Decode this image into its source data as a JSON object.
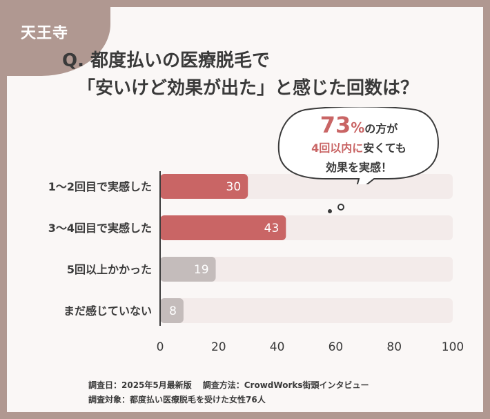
{
  "corner_label": "天王寺",
  "title": {
    "line1": "Q. 都度払いの医療脱毛で",
    "line2": "「安いけど効果が出た」と感じた回数は？"
  },
  "callout": {
    "percent": "73",
    "percent_unit": "%",
    "line1_rest": "の方が",
    "line2_em": "4回以内に",
    "line2_rest": "安くても",
    "line3": "効果を実感！"
  },
  "footnote": {
    "date": "調査日：2025年5月最新版",
    "method": "調査方法：CrowdWorks街頭インタビュー",
    "target": "調査対象：都度払い医療脱毛を受けた女性76人"
  },
  "colors": {
    "highlight": "#c96565",
    "muted": "#c4bcbb",
    "track": "#f3ebea",
    "frame": "#b09891"
  },
  "chart_data": {
    "type": "bar",
    "orientation": "horizontal",
    "categories": [
      "1～2回目で実感した",
      "3～4回目で実感した",
      "5回以上かかった",
      "まだ感じていない"
    ],
    "values": [
      30,
      43,
      19,
      8
    ],
    "bar_colors": [
      "#c96565",
      "#c96565",
      "#c4bcbb",
      "#c4bcbb"
    ],
    "xlim": [
      0,
      100
    ],
    "xticks": [
      0,
      20,
      40,
      60,
      80,
      100
    ],
    "grid": false,
    "legend": "none"
  }
}
